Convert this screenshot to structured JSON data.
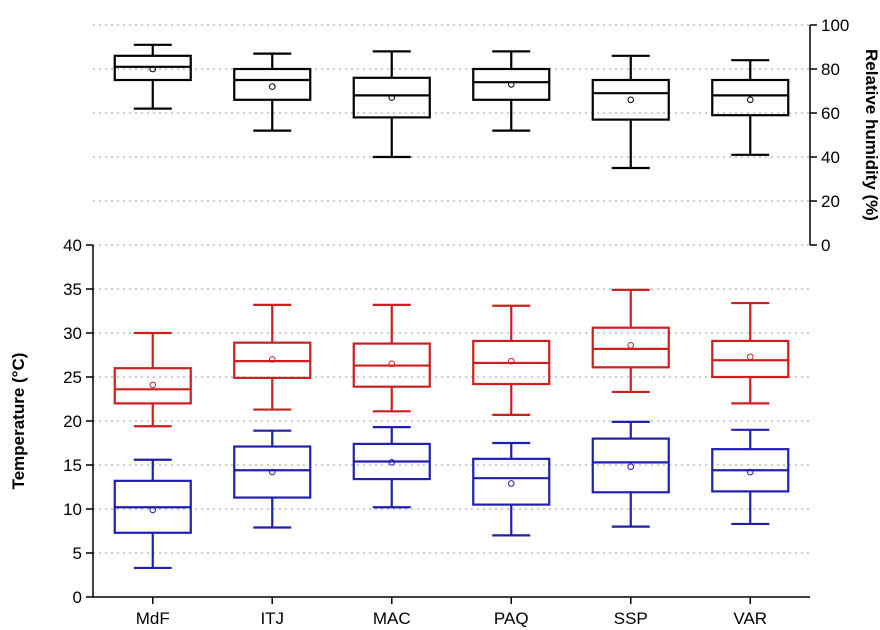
{
  "chart_data": [
    {
      "type": "box",
      "panel": "top",
      "categories": [
        "MdF",
        "ITJ",
        "MAC",
        "PAQ",
        "SSP",
        "VAR"
      ],
      "ylabel": "Relative humidity (%)",
      "ylim": [
        0,
        100
      ],
      "yticks": [
        0,
        20,
        40,
        60,
        80,
        100
      ],
      "grid": true,
      "y_axis_side": "right",
      "color": "#000000",
      "series": [
        {
          "boxes": [
            {
              "min": 62,
              "q1": 75,
              "median": 81,
              "q3": 86,
              "max": 91,
              "mean": 80
            },
            {
              "min": 52,
              "q1": 66,
              "median": 75,
              "q3": 80,
              "max": 87,
              "mean": 72
            },
            {
              "min": 40,
              "q1": 58,
              "median": 68,
              "q3": 76,
              "max": 88,
              "mean": 67
            },
            {
              "min": 52,
              "q1": 66,
              "median": 74,
              "q3": 80,
              "max": 88,
              "mean": 73
            },
            {
              "min": 35,
              "q1": 57,
              "median": 69,
              "q3": 75,
              "max": 86,
              "mean": 66
            },
            {
              "min": 41,
              "q1": 59,
              "median": 68,
              "q3": 75,
              "max": 84,
              "mean": 66
            }
          ]
        }
      ]
    },
    {
      "type": "box",
      "panel": "bottom",
      "categories": [
        "MdF",
        "ITJ",
        "MAC",
        "PAQ",
        "SSP",
        "VAR"
      ],
      "ylabel": "Temperature (°C)",
      "ylim": [
        0,
        40
      ],
      "yticks": [
        0,
        5,
        10,
        15,
        20,
        25,
        30,
        35,
        40
      ],
      "grid": true,
      "y_axis_side": "left",
      "series": [
        {
          "color": "#cc1f1f",
          "boxes": [
            {
              "min": 19.4,
              "q1": 22,
              "median": 23.6,
              "q3": 26,
              "max": 30,
              "mean": 24.1
            },
            {
              "min": 21.3,
              "q1": 24.9,
              "median": 26.8,
              "q3": 28.9,
              "max": 33.2,
              "mean": 27
            },
            {
              "min": 21.1,
              "q1": 23.9,
              "median": 26.3,
              "q3": 28.8,
              "max": 33.2,
              "mean": 26.5
            },
            {
              "min": 20.7,
              "q1": 24.2,
              "median": 26.6,
              "q3": 29.1,
              "max": 33.1,
              "mean": 26.8
            },
            {
              "min": 23.3,
              "q1": 26.1,
              "median": 28.2,
              "q3": 30.6,
              "max": 34.9,
              "mean": 28.6
            },
            {
              "min": 22,
              "q1": 25,
              "median": 26.9,
              "q3": 29.1,
              "max": 33.4,
              "mean": 27.3
            }
          ]
        },
        {
          "color": "#1f1fb0",
          "boxes": [
            {
              "min": 3.3,
              "q1": 7.3,
              "median": 10.2,
              "q3": 13.2,
              "max": 15.6,
              "mean": 9.9
            },
            {
              "min": 7.9,
              "q1": 11.3,
              "median": 14.4,
              "q3": 17.1,
              "max": 18.9,
              "mean": 14.2
            },
            {
              "min": 10.2,
              "q1": 13.4,
              "median": 15.4,
              "q3": 17.4,
              "max": 19.3,
              "mean": 15.3
            },
            {
              "min": 7,
              "q1": 10.5,
              "median": 13.5,
              "q3": 15.7,
              "max": 17.5,
              "mean": 12.9
            },
            {
              "min": 8,
              "q1": 11.9,
              "median": 15.3,
              "q3": 18,
              "max": 19.9,
              "mean": 14.8
            },
            {
              "min": 8.3,
              "q1": 12,
              "median": 14.4,
              "q3": 16.8,
              "max": 19,
              "mean": 14.2
            }
          ]
        }
      ]
    }
  ]
}
